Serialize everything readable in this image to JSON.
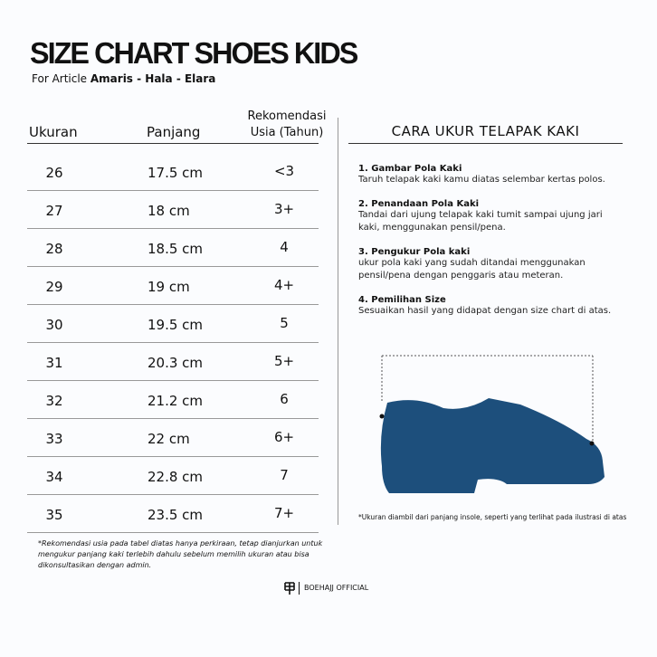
{
  "header": {
    "title": "SIZE CHART SHOES KIDS",
    "subtitle_prefix": "For Article",
    "subtitle_bold": "Amaris - Hala - Elara"
  },
  "table": {
    "columns": [
      "Ukuran",
      "Panjang",
      [
        "Rekomendasi",
        "Usia (Tahun)"
      ]
    ],
    "rows": [
      [
        "26",
        "17.5 cm",
        "<3"
      ],
      [
        "27",
        "18 cm",
        "3+"
      ],
      [
        "28",
        "18.5 cm",
        "4"
      ],
      [
        "29",
        "19 cm",
        "4+"
      ],
      [
        "30",
        "19.5 cm",
        "5"
      ],
      [
        "31",
        "20.3 cm",
        "5+"
      ],
      [
        "32",
        "21.2 cm",
        "6"
      ],
      [
        "33",
        "22 cm",
        "6+"
      ],
      [
        "34",
        "22.8 cm",
        "7"
      ],
      [
        "35",
        "23.5 cm",
        "7+"
      ]
    ]
  },
  "guide": {
    "title": "CARA UKUR TELAPAK KAKI",
    "steps": [
      {
        "title": "1. Gambar Pola Kaki",
        "text": "Taruh telapak kaki kamu diatas selembar kertas polos."
      },
      {
        "title": "2. Penandaan Pola Kaki",
        "text": "Tandai dari ujung telapak kaki tumit sampai ujung jari kaki, menggunakan pensil/pena."
      },
      {
        "title": "3. Pengukur Pola kaki",
        "text": "ukur pola kaki yang sudah ditandai menggunakan pensil/pena dengan penggaris atau meteran."
      },
      {
        "title": "4. Pemilihan Size",
        "text": "Sesuaikan hasil yang didapat dengan size chart di atas."
      }
    ],
    "note": "*Ukuran diambil  dari panjang insole, seperti yang terlihat pada ilustrasi di atas"
  },
  "footnote": "*Rekomendasi usia pada tabel diatas hanya perkiraan, tetap dianjurkan untuk mengukur panjang kaki terlebih dahulu sebelum memilih ukuran atau bisa dikonsultasikan dengan admin.",
  "brand": "BOEHAJJ OFFICIAL"
}
